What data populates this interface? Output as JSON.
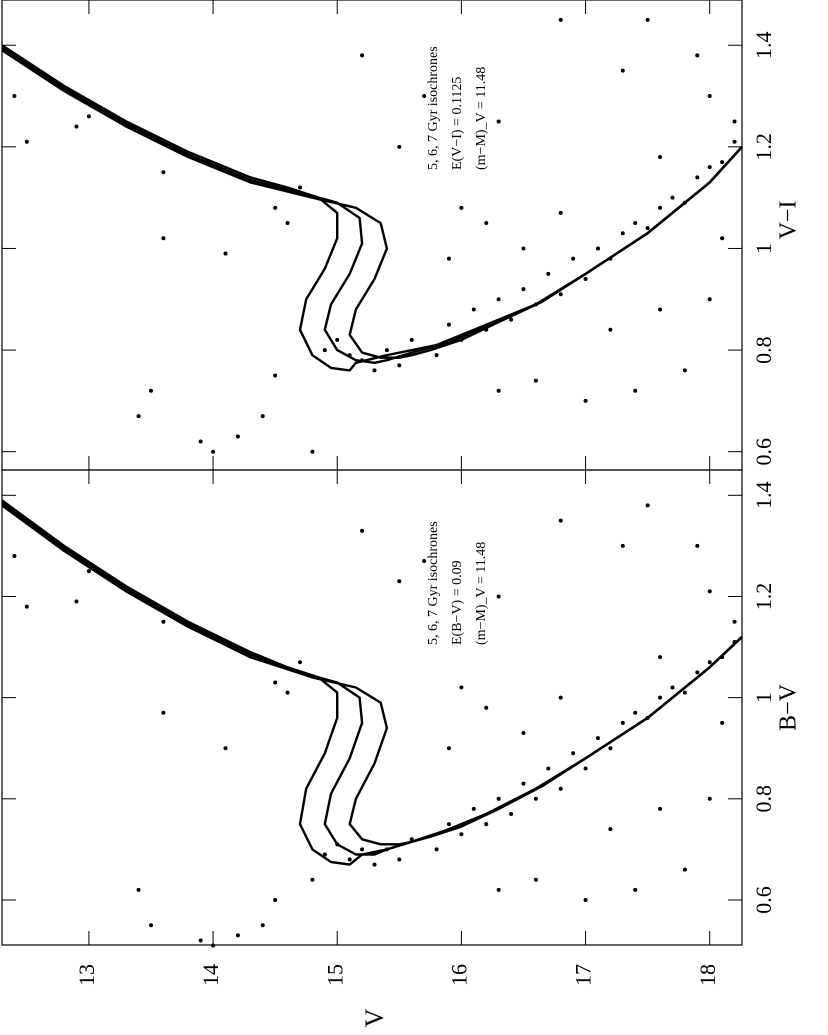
{
  "chart_data": [
    {
      "type": "scatter",
      "ylabel": "V−I",
      "annotations": [
        "5, 6, 7 Gyr isochrones",
        "E(V−I) = 0.1125",
        "(m−M)_V = 11.48"
      ],
      "xlim": [
        12.3,
        18.26
      ],
      "xticks": [
        13,
        14,
        15,
        16,
        17,
        18
      ],
      "ylim": [
        0.564,
        1.489
      ],
      "yticks": [
        0.6,
        0.8,
        1,
        1.2,
        1.4
      ],
      "series": [
        {
          "type": "line",
          "color": "#000000",
          "x": [
            12.3,
            12.8,
            13.3,
            13.8,
            14.3,
            14.6,
            14.85,
            15.0,
            15.0,
            14.9,
            14.75,
            14.7,
            14.8,
            14.95,
            15.1,
            15.15,
            15.4,
            15.8,
            16.2,
            16.6,
            17.0,
            17.5,
            18.0,
            18.26
          ],
          "values": [
            1.4,
            1.32,
            1.25,
            1.19,
            1.14,
            1.12,
            1.1,
            1.07,
            1.02,
            0.96,
            0.9,
            0.84,
            0.79,
            0.765,
            0.76,
            0.775,
            0.79,
            0.81,
            0.85,
            0.89,
            0.95,
            1.03,
            1.13,
            1.2
          ]
        },
        {
          "type": "line",
          "color": "#000000",
          "x": [
            12.3,
            12.8,
            13.3,
            13.8,
            14.3,
            14.7,
            15.0,
            15.18,
            15.2,
            15.1,
            14.95,
            14.9,
            15.0,
            15.15,
            15.3,
            15.4,
            15.6,
            15.9,
            16.25,
            16.6,
            17.0,
            17.5,
            18.0,
            18.26
          ],
          "values": [
            1.395,
            1.315,
            1.245,
            1.185,
            1.135,
            1.11,
            1.09,
            1.06,
            1.01,
            0.95,
            0.89,
            0.84,
            0.8,
            0.78,
            0.775,
            0.78,
            0.795,
            0.815,
            0.852,
            0.89,
            0.95,
            1.03,
            1.13,
            1.2
          ]
        },
        {
          "type": "line",
          "color": "#000000",
          "x": [
            12.3,
            12.8,
            13.3,
            13.8,
            14.3,
            14.8,
            15.15,
            15.35,
            15.4,
            15.3,
            15.15,
            15.1,
            15.2,
            15.35,
            15.5,
            15.6,
            15.75,
            16.0,
            16.3,
            16.65,
            17.0,
            17.5,
            18.0,
            18.26
          ],
          "values": [
            1.39,
            1.31,
            1.24,
            1.18,
            1.13,
            1.1,
            1.08,
            1.05,
            1.0,
            0.94,
            0.88,
            0.83,
            0.795,
            0.785,
            0.785,
            0.79,
            0.8,
            0.82,
            0.855,
            0.895,
            0.95,
            1.03,
            1.13,
            1.2
          ]
        },
        {
          "type": "scatter",
          "color": "#000000",
          "x": [
            12.4,
            12.9,
            13.0,
            12.5,
            13.6,
            13.6,
            14.1,
            13.5,
            13.9,
            14.0,
            14.2,
            13.4,
            14.4,
            14.5,
            14.8,
            14.5,
            14.6,
            14.7,
            15.2,
            15.5,
            15.7,
            16.3,
            16.8,
            17.3,
            17.5,
            18.0,
            17.9,
            18.2,
            17.6,
            14.9,
            15.0,
            15.1,
            15.2,
            15.3,
            15.4,
            15.5,
            15.6,
            15.8,
            15.9,
            16.0,
            16.1,
            16.2,
            16.3,
            16.4,
            16.5,
            16.6,
            16.7,
            16.8,
            16.9,
            17.0,
            17.1,
            17.2,
            17.3,
            17.4,
            17.5,
            17.6,
            17.7,
            17.8,
            17.9,
            18.0,
            18.1,
            18.2,
            16.2,
            16.5,
            16.8,
            16.3,
            16.6,
            17.0,
            17.4,
            17.8,
            18.0,
            17.6,
            17.2,
            18.1,
            15.9,
            16.0
          ],
          "values": [
            1.3,
            1.24,
            1.26,
            1.21,
            1.15,
            1.02,
            0.99,
            0.72,
            0.62,
            0.6,
            0.63,
            0.67,
            0.67,
            0.75,
            0.6,
            1.08,
            1.05,
            1.12,
            1.38,
            1.2,
            1.3,
            1.25,
            1.45,
            1.35,
            1.45,
            1.3,
            1.38,
            1.25,
            1.18,
            0.8,
            0.82,
            0.79,
            0.78,
            0.76,
            0.8,
            0.77,
            0.82,
            0.79,
            0.85,
            0.82,
            0.88,
            0.84,
            0.9,
            0.86,
            0.92,
            0.89,
            0.95,
            0.91,
            0.98,
            0.94,
            1.0,
            0.98,
            1.03,
            1.05,
            1.04,
            1.08,
            1.1,
            1.09,
            1.14,
            1.16,
            1.17,
            1.21,
            1.05,
            1.0,
            1.07,
            0.72,
            0.74,
            0.7,
            0.72,
            0.76,
            0.9,
            0.88,
            0.84,
            1.02,
            0.98,
            1.08
          ]
        }
      ]
    },
    {
      "type": "scatter",
      "ylabel": "B−V",
      "xlabel": "V",
      "annotations": [
        "5, 6, 7 Gyr isochrones",
        "E(B−V) = 0.09",
        "(m−M)_V = 11.48"
      ],
      "xlim": [
        12.3,
        18.26
      ],
      "xticks": [
        13,
        14,
        15,
        16,
        17,
        18
      ],
      "ylim": [
        0.511,
        1.45
      ],
      "yticks": [
        0.6,
        0.8,
        1,
        1.2,
        1.4
      ],
      "series": [
        {
          "type": "line",
          "color": "#000000",
          "x": [
            12.3,
            12.8,
            13.3,
            13.8,
            14.3,
            14.6,
            14.85,
            15.0,
            15.0,
            14.9,
            14.75,
            14.7,
            14.8,
            14.95,
            15.1,
            15.2,
            15.4,
            15.8,
            16.2,
            16.6,
            17.0,
            17.5,
            18.0,
            18.26
          ],
          "values": [
            1.39,
            1.3,
            1.22,
            1.15,
            1.09,
            1.06,
            1.04,
            1.01,
            0.96,
            0.89,
            0.82,
            0.75,
            0.7,
            0.675,
            0.67,
            0.69,
            0.7,
            0.73,
            0.77,
            0.82,
            0.88,
            0.96,
            1.06,
            1.12
          ]
        },
        {
          "type": "line",
          "color": "#000000",
          "x": [
            12.3,
            12.8,
            13.3,
            13.8,
            14.3,
            14.7,
            15.0,
            15.18,
            15.2,
            15.1,
            14.95,
            14.9,
            15.0,
            15.15,
            15.3,
            15.4,
            15.6,
            15.9,
            16.25,
            16.6,
            17.0,
            17.5,
            18.0,
            18.26
          ],
          "values": [
            1.385,
            1.295,
            1.215,
            1.145,
            1.085,
            1.05,
            1.03,
            1.0,
            0.95,
            0.88,
            0.81,
            0.75,
            0.71,
            0.69,
            0.69,
            0.7,
            0.715,
            0.74,
            0.775,
            0.82,
            0.88,
            0.96,
            1.06,
            1.12
          ]
        },
        {
          "type": "line",
          "color": "#000000",
          "x": [
            12.3,
            12.8,
            13.3,
            13.8,
            14.3,
            14.8,
            15.15,
            15.35,
            15.4,
            15.3,
            15.15,
            15.1,
            15.2,
            15.35,
            15.5,
            15.6,
            15.75,
            16.0,
            16.3,
            16.65,
            17.0,
            17.5,
            18.0,
            18.26
          ],
          "values": [
            1.38,
            1.29,
            1.21,
            1.14,
            1.08,
            1.04,
            1.02,
            0.99,
            0.94,
            0.87,
            0.8,
            0.75,
            0.72,
            0.71,
            0.71,
            0.715,
            0.725,
            0.745,
            0.78,
            0.825,
            0.88,
            0.96,
            1.06,
            1.12
          ]
        },
        {
          "type": "scatter",
          "color": "#000000",
          "x": [
            12.4,
            12.9,
            13.0,
            12.5,
            13.6,
            13.6,
            14.1,
            13.5,
            13.9,
            14.0,
            14.2,
            13.4,
            14.4,
            14.5,
            14.8,
            14.5,
            14.6,
            14.7,
            15.2,
            15.5,
            15.7,
            16.3,
            16.8,
            17.3,
            17.5,
            18.0,
            17.9,
            18.2,
            17.6,
            14.9,
            15.0,
            15.1,
            15.2,
            15.3,
            15.4,
            15.5,
            15.6,
            15.8,
            15.9,
            16.0,
            16.1,
            16.2,
            16.3,
            16.4,
            16.5,
            16.6,
            16.7,
            16.8,
            16.9,
            17.0,
            17.1,
            17.2,
            17.3,
            17.4,
            17.5,
            17.6,
            17.7,
            17.8,
            17.9,
            18.0,
            18.1,
            18.2,
            16.2,
            16.5,
            16.8,
            16.3,
            16.6,
            17.0,
            17.4,
            17.8,
            18.0,
            17.6,
            17.2,
            18.1,
            15.9,
            16.0
          ],
          "values": [
            1.28,
            1.19,
            1.25,
            1.18,
            1.15,
            0.97,
            0.9,
            0.55,
            0.52,
            0.51,
            0.53,
            0.62,
            0.55,
            0.6,
            0.64,
            1.03,
            1.01,
            1.07,
            1.33,
            1.23,
            1.27,
            1.2,
            1.35,
            1.3,
            1.38,
            1.21,
            1.3,
            1.15,
            1.08,
            0.69,
            0.71,
            0.68,
            0.7,
            0.67,
            0.7,
            0.68,
            0.72,
            0.7,
            0.75,
            0.73,
            0.78,
            0.75,
            0.8,
            0.77,
            0.83,
            0.8,
            0.86,
            0.82,
            0.89,
            0.86,
            0.92,
            0.9,
            0.95,
            0.97,
            0.96,
            1.0,
            1.02,
            1.01,
            1.05,
            1.07,
            1.08,
            1.11,
            0.98,
            0.93,
            1.0,
            0.62,
            0.64,
            0.6,
            0.62,
            0.66,
            0.8,
            0.78,
            0.74,
            0.95,
            0.9,
            1.02
          ]
        }
      ]
    }
  ]
}
